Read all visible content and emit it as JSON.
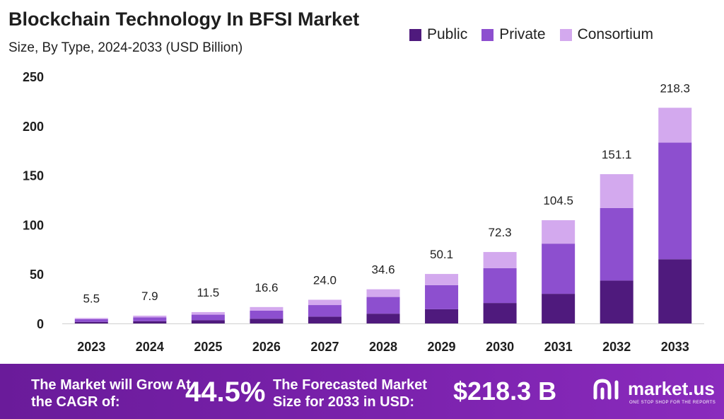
{
  "title": "Blockchain Technology In BFSI Market",
  "subtitle": "Size, By Type, 2024-2033 (USD Billion)",
  "colors": {
    "public": "#4f1a7d",
    "private": "#8d4fcf",
    "consortium": "#d3a9ee",
    "footer": "#7b22ad"
  },
  "chart_data": {
    "type": "bar",
    "stacked": true,
    "categories": [
      "2023",
      "2024",
      "2025",
      "2026",
      "2027",
      "2028",
      "2029",
      "2030",
      "2031",
      "2032",
      "2033"
    ],
    "series": [
      {
        "name": "Public",
        "values": [
          1.6,
          2.3,
          3.3,
          4.8,
          6.9,
          9.9,
          14.4,
          20.7,
          30.0,
          43.4,
          65.0
        ]
      },
      {
        "name": "Private",
        "values": [
          2.7,
          3.8,
          5.6,
          8.1,
          11.7,
          16.9,
          24.4,
          35.2,
          50.8,
          73.4,
          118.0
        ]
      },
      {
        "name": "Consortium",
        "values": [
          1.2,
          1.8,
          2.6,
          3.7,
          5.4,
          7.8,
          11.3,
          16.4,
          23.7,
          34.3,
          35.3
        ]
      }
    ],
    "totals": [
      5.5,
      7.9,
      11.5,
      16.6,
      24.0,
      34.6,
      50.1,
      72.3,
      104.5,
      151.1,
      218.3
    ],
    "total_labels": [
      "5.5",
      "7.9",
      "11.5",
      "16.6",
      "24.0",
      "34.6",
      "50.1",
      "72.3",
      "104.5",
      "151.1",
      "218.3"
    ],
    "yticks": [
      0,
      50,
      100,
      150,
      200,
      250
    ],
    "ylim": [
      0,
      250
    ],
    "legend_position": "top-right",
    "grid": false
  },
  "footer": {
    "cagr_text": "The Market will Grow At the CAGR of:",
    "cagr_value": "44.5%",
    "forecast_text": "The Forecasted Market Size for 2033 in USD:",
    "forecast_value": "$218.3 B",
    "brand": "market.us",
    "brand_tagline": "ONE STOP SHOP FOR THE REPORTS"
  }
}
